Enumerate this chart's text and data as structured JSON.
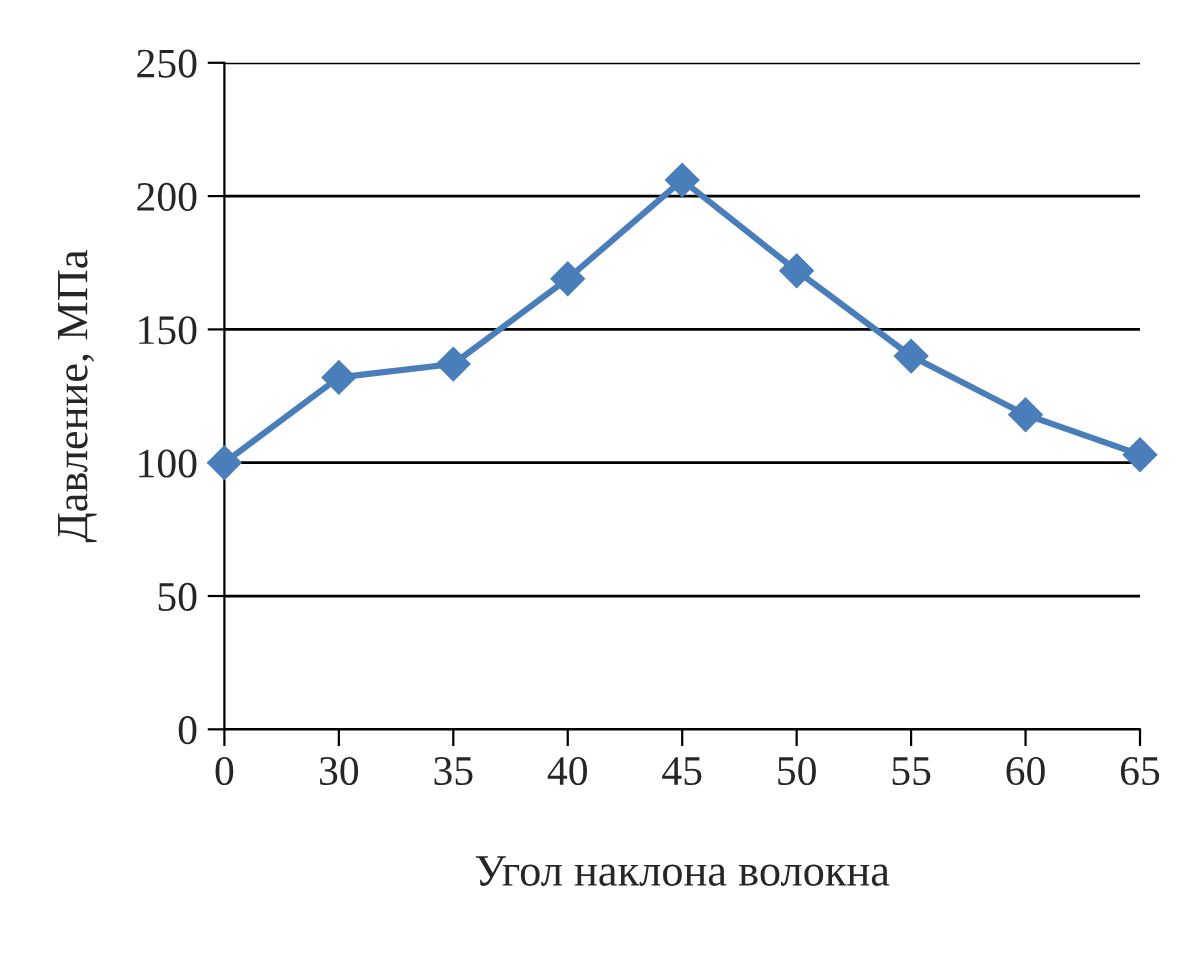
{
  "chart_data": {
    "type": "line",
    "xlabel": "Угол наклона волокна",
    "ylabel": "Давление, МПа",
    "categories": [
      "0",
      "30",
      "35",
      "40",
      "45",
      "50",
      "55",
      "60",
      "65"
    ],
    "series": [
      {
        "color": "#4a7ebb",
        "values": [
          100,
          132,
          137,
          169,
          206,
          172,
          140,
          118,
          103
        ]
      }
    ],
    "ylim": [
      0,
      250
    ],
    "yticks": [
      0,
      50,
      100,
      150,
      200,
      250
    ],
    "grid": "y",
    "marker": "diamond",
    "line_style": "solid"
  }
}
